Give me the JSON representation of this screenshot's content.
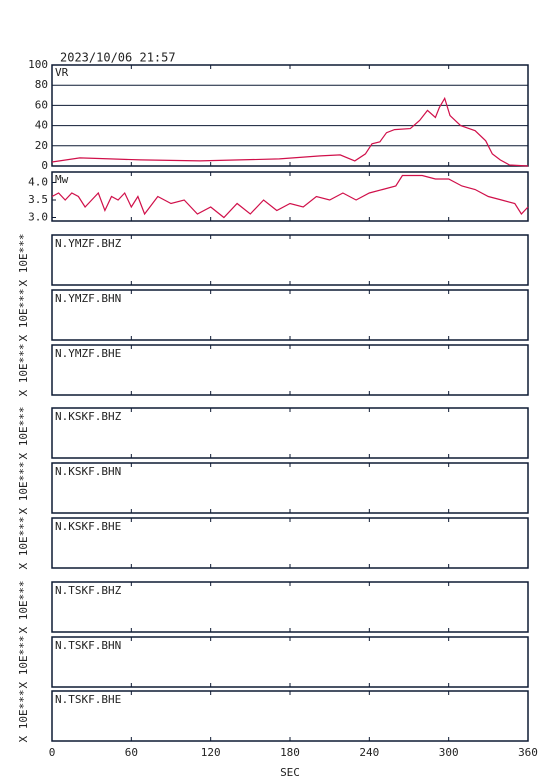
{
  "timestamp": "2023/10/06 21:57",
  "x_axis": {
    "label": "SEC",
    "xlim": [
      0,
      360
    ],
    "xticks": [
      0,
      60,
      120,
      180,
      240,
      300,
      360
    ]
  },
  "chart_data": [
    {
      "type": "line",
      "label": "VR",
      "x": [
        0,
        21,
        44,
        67,
        112,
        142,
        172,
        203,
        218,
        229,
        237,
        242,
        248,
        253,
        259,
        271,
        278,
        284,
        290,
        293,
        297,
        301,
        309,
        320,
        328,
        333,
        339,
        346,
        360
      ],
      "series": [
        {
          "color": "#d0104a",
          "values": [
            4,
            8,
            7,
            6,
            5,
            6,
            7,
            10,
            11,
            5,
            12,
            22,
            24,
            33,
            36,
            37,
            45,
            55,
            48,
            58,
            67,
            50,
            40,
            35,
            25,
            12,
            6,
            1,
            0
          ]
        }
      ],
      "ylim": [
        0,
        100
      ],
      "yticks": [
        0,
        20,
        40,
        60,
        80,
        100
      ],
      "grid": true
    },
    {
      "type": "line",
      "label": "Mw",
      "x": [
        0,
        5,
        10,
        15,
        20,
        25,
        30,
        35,
        40,
        45,
        50,
        55,
        60,
        65,
        70,
        80,
        90,
        100,
        110,
        120,
        130,
        140,
        150,
        160,
        170,
        180,
        190,
        200,
        210,
        220,
        230,
        240,
        250,
        260,
        265,
        270,
        280,
        290,
        300,
        310,
        320,
        330,
        340,
        350,
        355,
        360
      ],
      "series": [
        {
          "color": "#d0104a",
          "values": [
            3.6,
            3.7,
            3.5,
            3.7,
            3.6,
            3.3,
            3.5,
            3.7,
            3.2,
            3.6,
            3.5,
            3.7,
            3.3,
            3.6,
            3.1,
            3.6,
            3.4,
            3.5,
            3.1,
            3.3,
            3.0,
            3.4,
            3.1,
            3.5,
            3.2,
            3.4,
            3.3,
            3.6,
            3.5,
            3.7,
            3.5,
            3.7,
            3.8,
            3.9,
            4.2,
            4.2,
            4.2,
            4.1,
            4.1,
            3.9,
            3.8,
            3.6,
            3.5,
            3.4,
            3.1,
            3.3
          ]
        }
      ],
      "ylim": [
        2.9,
        4.3
      ],
      "yticks": [
        {
          "value": 3.0,
          "label": "3.0"
        },
        3.5,
        {
          "value": 4.0,
          "label": "4.0"
        }
      ],
      "grid": false
    },
    {
      "type": "waveform",
      "label": "N.YMZF.BHZ",
      "ylabel": "X 10E***"
    },
    {
      "type": "waveform",
      "label": "N.YMZF.BHN",
      "ylabel": "X 10E***"
    },
    {
      "type": "waveform",
      "label": "N.YMZF.BHE",
      "ylabel": "X 10E***"
    },
    {
      "type": "waveform",
      "label": "N.KSKF.BHZ",
      "ylabel": "X 10E***"
    },
    {
      "type": "waveform",
      "label": "N.KSKF.BHN",
      "ylabel": "X 10E***"
    },
    {
      "type": "waveform",
      "label": "N.KSKF.BHE",
      "ylabel": "X 10E***"
    },
    {
      "type": "waveform",
      "label": "N.TSKF.BHZ",
      "ylabel": "X 10E***"
    },
    {
      "type": "waveform",
      "label": "N.TSKF.BHN",
      "ylabel": "X 10E***"
    },
    {
      "type": "waveform",
      "label": "N.TSKF.BHE",
      "ylabel": "X 10E***"
    }
  ]
}
